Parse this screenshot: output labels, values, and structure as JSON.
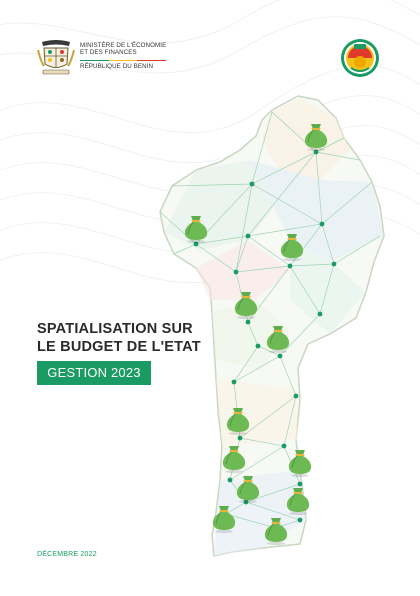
{
  "header": {
    "ministry_line1": "MINISTÈRE DE L'ÉCONOMIE",
    "ministry_line2": "ET DES FINANCES",
    "country": "RÉPUBLIQUE DU BENIN",
    "flag_colors": [
      "#1a9b63",
      "#f2c21b",
      "#e03a2f"
    ]
  },
  "cover": {
    "title_line1": "SPATIALISATION SUR",
    "title_line2": "LE BUDGET DE L'ETAT",
    "badge": "GESTION 2023",
    "date": "DÉCEMBRE 2022"
  },
  "colors": {
    "accent": "#1a9b63",
    "map_outline": "#c9d6c0",
    "network": "#9fd4b3"
  },
  "icons": {
    "money_bag": "money-bag-icon",
    "node": "network-node"
  }
}
